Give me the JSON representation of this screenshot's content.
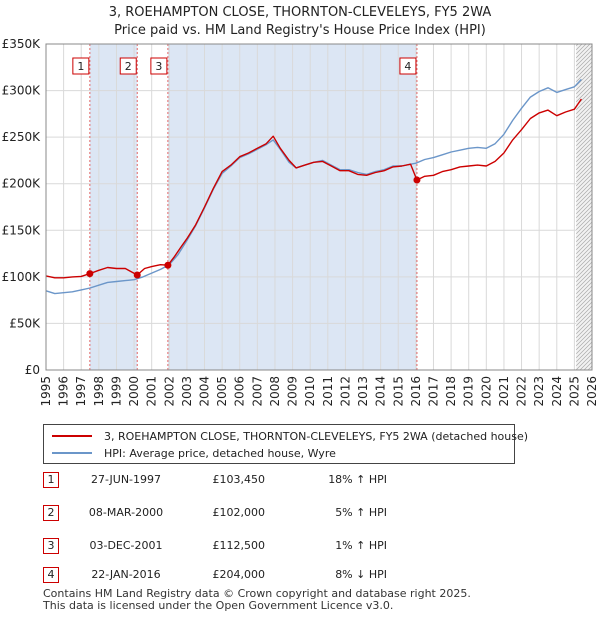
{
  "title": {
    "line1": "3, ROEHAMPTON CLOSE, THORNTON-CLEVELEYS, FY5 2WA",
    "line2": "Price paid vs. HM Land Registry's House Price Index (HPI)"
  },
  "colors": {
    "property": "#cc0000",
    "hpi": "#6b96c9",
    "shade": "#dce6f4",
    "grid": "#d9d9d9",
    "sale_line": "#e06666"
  },
  "chart_data": {
    "type": "line",
    "title": "Price paid vs. HM Land Registry's House Price Index (HPI)",
    "xlabel": "",
    "ylabel": "",
    "xlim": [
      1995,
      2026
    ],
    "ylim": [
      0,
      350000
    ],
    "x_ticks": [
      "1995",
      "1996",
      "1997",
      "1998",
      "1999",
      "2000",
      "2001",
      "2002",
      "2003",
      "2004",
      "2005",
      "2006",
      "2007",
      "2008",
      "2009",
      "2010",
      "2011",
      "2012",
      "2013",
      "2014",
      "2015",
      "2016",
      "2017",
      "2018",
      "2019",
      "2020",
      "2021",
      "2022",
      "2023",
      "2024",
      "2025",
      "2026"
    ],
    "y_ticks": [
      {
        "value": 0,
        "label": "£0"
      },
      {
        "value": 50000,
        "label": "£50K"
      },
      {
        "value": 100000,
        "label": "£100K"
      },
      {
        "value": 150000,
        "label": "£150K"
      },
      {
        "value": 200000,
        "label": "£200K"
      },
      {
        "value": 250000,
        "label": "£250K"
      },
      {
        "value": 300000,
        "label": "£300K"
      },
      {
        "value": 350000,
        "label": "£350K"
      }
    ],
    "grid": true,
    "shaded_periods": [
      [
        1997.49,
        2000.18
      ],
      [
        2001.92,
        2016.06
      ]
    ],
    "forecast_start": 2025.1,
    "series": [
      {
        "name": "3, ROEHAMPTON CLOSE, THORNTON-CLEVELEYS, FY5 2WA (detached house)",
        "color": "#cc0000",
        "points": [
          [
            1995.0,
            101000
          ],
          [
            1995.5,
            99000
          ],
          [
            1996.0,
            99000
          ],
          [
            1996.5,
            100000
          ],
          [
            1997.0,
            100500
          ],
          [
            1997.49,
            103450
          ],
          [
            1998.0,
            107000
          ],
          [
            1998.5,
            110000
          ],
          [
            1999.0,
            109000
          ],
          [
            1999.5,
            109000
          ],
          [
            2000.18,
            102000
          ],
          [
            2000.6,
            109000
          ],
          [
            2001.0,
            111000
          ],
          [
            2001.5,
            113000
          ],
          [
            2001.92,
            112500
          ],
          [
            2002.3,
            122000
          ],
          [
            2002.7,
            133000
          ],
          [
            2003.0,
            141000
          ],
          [
            2003.5,
            156000
          ],
          [
            2004.0,
            175000
          ],
          [
            2004.5,
            195000
          ],
          [
            2005.0,
            213000
          ],
          [
            2005.5,
            220000
          ],
          [
            2006.0,
            229000
          ],
          [
            2006.5,
            233000
          ],
          [
            2007.0,
            238000
          ],
          [
            2007.5,
            243000
          ],
          [
            2007.9,
            251000
          ],
          [
            2008.3,
            238000
          ],
          [
            2008.8,
            225000
          ],
          [
            2009.2,
            217000
          ],
          [
            2009.7,
            220000
          ],
          [
            2010.2,
            223000
          ],
          [
            2010.7,
            224000
          ],
          [
            2011.2,
            219000
          ],
          [
            2011.7,
            214000
          ],
          [
            2012.2,
            214000
          ],
          [
            2012.7,
            210000
          ],
          [
            2013.2,
            209000
          ],
          [
            2013.7,
            212000
          ],
          [
            2014.2,
            214000
          ],
          [
            2014.7,
            218000
          ],
          [
            2015.2,
            219000
          ],
          [
            2015.7,
            221000
          ],
          [
            2016.06,
            204000
          ],
          [
            2016.5,
            208000
          ],
          [
            2017.0,
            209000
          ],
          [
            2017.5,
            213000
          ],
          [
            2018.0,
            215000
          ],
          [
            2018.5,
            218000
          ],
          [
            2019.0,
            219000
          ],
          [
            2019.5,
            220000
          ],
          [
            2020.0,
            219000
          ],
          [
            2020.5,
            224000
          ],
          [
            2021.0,
            233000
          ],
          [
            2021.5,
            247000
          ],
          [
            2022.0,
            258000
          ],
          [
            2022.5,
            270000
          ],
          [
            2023.0,
            276000
          ],
          [
            2023.5,
            279000
          ],
          [
            2024.0,
            273000
          ],
          [
            2024.5,
            277000
          ],
          [
            2025.0,
            280000
          ],
          [
            2025.4,
            291000
          ]
        ]
      },
      {
        "name": "HPI: Average price, detached house, Wyre",
        "color": "#6b96c9",
        "points": [
          [
            1995.0,
            85000
          ],
          [
            1995.5,
            82000
          ],
          [
            1996.0,
            83000
          ],
          [
            1996.5,
            84000
          ],
          [
            1997.0,
            86000
          ],
          [
            1997.5,
            88000
          ],
          [
            1998.0,
            91000
          ],
          [
            1998.5,
            94000
          ],
          [
            1999.0,
            95000
          ],
          [
            1999.5,
            96000
          ],
          [
            2000.0,
            97000
          ],
          [
            2000.5,
            100000
          ],
          [
            2001.0,
            104000
          ],
          [
            2001.5,
            108000
          ],
          [
            2002.0,
            113000
          ],
          [
            2002.5,
            124000
          ],
          [
            2003.0,
            139000
          ],
          [
            2003.5,
            155000
          ],
          [
            2004.0,
            174000
          ],
          [
            2004.5,
            194000
          ],
          [
            2005.0,
            211000
          ],
          [
            2005.5,
            219000
          ],
          [
            2006.0,
            228000
          ],
          [
            2006.5,
            232000
          ],
          [
            2007.0,
            237000
          ],
          [
            2007.5,
            242000
          ],
          [
            2007.9,
            247000
          ],
          [
            2008.3,
            237000
          ],
          [
            2008.8,
            223000
          ],
          [
            2009.2,
            217000
          ],
          [
            2009.7,
            220000
          ],
          [
            2010.2,
            223000
          ],
          [
            2010.7,
            225000
          ],
          [
            2011.2,
            220000
          ],
          [
            2011.7,
            215000
          ],
          [
            2012.2,
            215000
          ],
          [
            2012.7,
            212000
          ],
          [
            2013.2,
            210000
          ],
          [
            2013.7,
            213000
          ],
          [
            2014.2,
            215000
          ],
          [
            2014.7,
            219000
          ],
          [
            2015.2,
            219000
          ],
          [
            2015.7,
            221000
          ],
          [
            2016.0,
            222000
          ],
          [
            2016.5,
            226000
          ],
          [
            2017.0,
            228000
          ],
          [
            2017.5,
            231000
          ],
          [
            2018.0,
            234000
          ],
          [
            2018.5,
            236000
          ],
          [
            2019.0,
            238000
          ],
          [
            2019.5,
            239000
          ],
          [
            2020.0,
            238000
          ],
          [
            2020.5,
            243000
          ],
          [
            2021.0,
            253000
          ],
          [
            2021.5,
            268000
          ],
          [
            2022.0,
            281000
          ],
          [
            2022.5,
            293000
          ],
          [
            2023.0,
            299000
          ],
          [
            2023.5,
            303000
          ],
          [
            2024.0,
            298000
          ],
          [
            2024.5,
            301000
          ],
          [
            2025.0,
            304000
          ],
          [
            2025.4,
            312000
          ]
        ]
      }
    ],
    "sales": [
      {
        "id": "1",
        "x": 1997.49,
        "price": 103450
      },
      {
        "id": "2",
        "x": 2000.18,
        "price": 102000
      },
      {
        "id": "3",
        "x": 2001.92,
        "price": 112500
      },
      {
        "id": "4",
        "x": 2016.06,
        "price": 204000
      }
    ]
  },
  "legend": {
    "property": "3, ROEHAMPTON CLOSE, THORNTON-CLEVELEYS, FY5 2WA (detached house)",
    "hpi": "HPI: Average price, detached house, Wyre"
  },
  "sales_table": [
    {
      "num": "1",
      "date": "27-JUN-1997",
      "price": "£103,450",
      "hpi": "18% ↑ HPI"
    },
    {
      "num": "2",
      "date": "08-MAR-2000",
      "price": "£102,000",
      "hpi": "5% ↑ HPI"
    },
    {
      "num": "3",
      "date": "03-DEC-2001",
      "price": "£112,500",
      "hpi": "1% ↑ HPI"
    },
    {
      "num": "4",
      "date": "22-JAN-2016",
      "price": "£204,000",
      "hpi": "8% ↓ HPI"
    }
  ],
  "footer": {
    "line1": "Contains HM Land Registry data © Crown copyright and database right 2025.",
    "line2": "This data is licensed under the Open Government Licence v3.0."
  }
}
